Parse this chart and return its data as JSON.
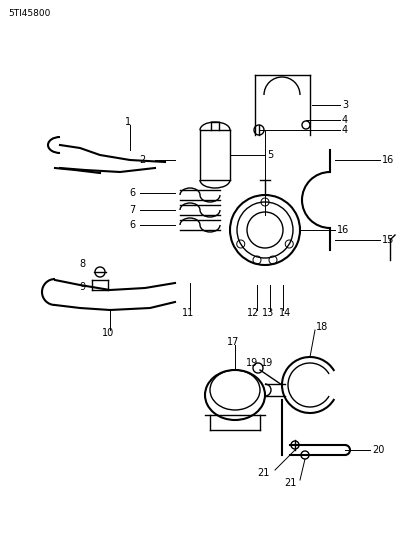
{
  "title": "5TI45800",
  "bg_color": "#ffffff",
  "line_color": "#000000",
  "fig_width": 4.08,
  "fig_height": 5.33,
  "dpi": 100
}
